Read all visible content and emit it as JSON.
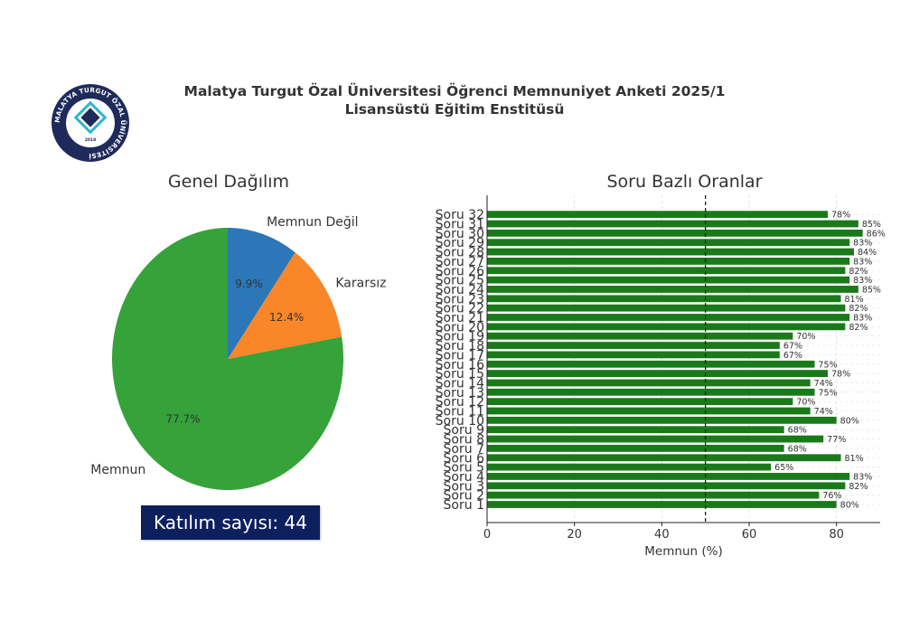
{
  "header": {
    "title_line1": "Malatya Turgut Özal Üniversitesi Öğrenci Memnuniyet Anketi 2025/1",
    "title_line2": "Lisansüstü Eğitim Enstitüsü"
  },
  "logo": {
    "ring_text": "MALATYA TURGUT ÖZAL ÜNİVERSİTESİ",
    "year": "2018",
    "colors": {
      "ring": "#1e2a5a",
      "teal": "#2fb7c9"
    }
  },
  "participation": {
    "label": "Katılım sayısı: 44"
  },
  "chart_data": [
    {
      "type": "pie",
      "title": "Genel Dağılım",
      "slices": [
        {
          "label": "Memnun",
          "value": 77.7,
          "pct_label": "77.7%",
          "color": "#36a23a"
        },
        {
          "label": "Kararsız",
          "value": 12.4,
          "pct_label": "12.4%",
          "color": "#f98628"
        },
        {
          "label": "Memnun Değil",
          "value": 9.9,
          "pct_label": "9.9%",
          "color": "#2b77b7"
        }
      ]
    },
    {
      "type": "bar",
      "orientation": "horizontal",
      "title": "Soru Bazlı Oranlar",
      "xlabel": "Memnun (%)",
      "xlim": [
        0,
        90
      ],
      "xticks": [
        0,
        20,
        40,
        60,
        80
      ],
      "reference_line": 50,
      "bar_color": "#1a7a1a",
      "categories": [
        "Soru 1",
        "Soru 2",
        "Soru 3",
        "Soru 4",
        "Soru 5",
        "Soru 6",
        "Soru 7",
        "Soru 8",
        "Soru 9",
        "Soru 10",
        "Soru 11",
        "Soru 12",
        "Soru 13",
        "Soru 14",
        "Soru 15",
        "Soru 16",
        "Soru 17",
        "Soru 18",
        "Soru 19",
        "Soru 20",
        "Soru 21",
        "Soru 22",
        "Soru 23",
        "Soru 24",
        "Soru 25",
        "Soru 26",
        "Soru 27",
        "Soru 28",
        "Soru 29",
        "Soru 30",
        "Soru 31",
        "Soru 32"
      ],
      "values": [
        80,
        76,
        82,
        83,
        65,
        81,
        68,
        77,
        68,
        80,
        74,
        70,
        75,
        74,
        78,
        75,
        67,
        67,
        70,
        82,
        83,
        82,
        81,
        85,
        83,
        82,
        83,
        84,
        83,
        86,
        85,
        78
      ],
      "value_labels": [
        "80%",
        "76%",
        "82%",
        "83%",
        "65%",
        "81%",
        "68%",
        "77%",
        "68%",
        "80%",
        "74%",
        "70%",
        "75%",
        "74%",
        "78%",
        "75%",
        "67%",
        "67%",
        "70%",
        "82%",
        "83%",
        "82%",
        "81%",
        "85%",
        "83%",
        "82%",
        "83%",
        "84%",
        "83%",
        "86%",
        "85%",
        "78%"
      ]
    }
  ]
}
